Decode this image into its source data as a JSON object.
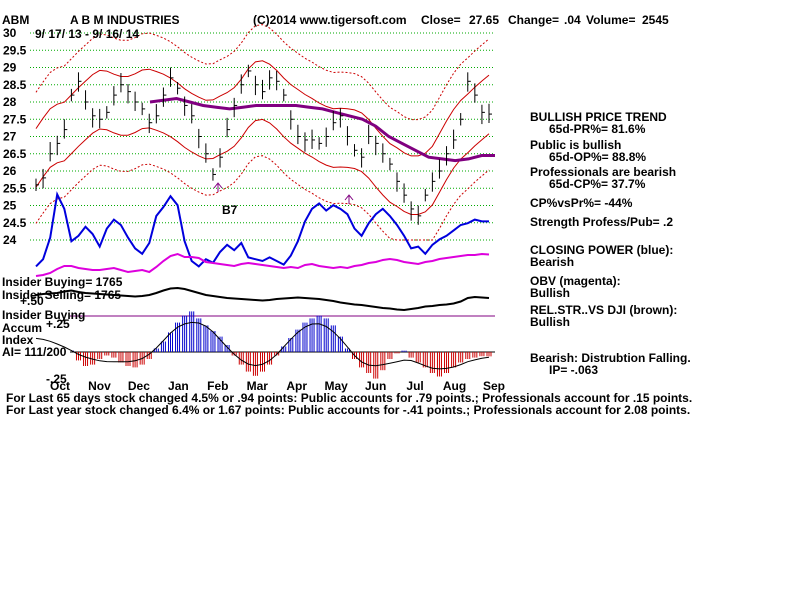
{
  "header": {
    "ticker": "ABM",
    "company": "A B M INDUSTRIES",
    "copyright": "(C)2014 www.tigersoft.com",
    "close_label": "Close=",
    "close_value": "27.65",
    "change_label": "Change=",
    "change_value": ".04",
    "volume_label": "Volume=",
    "volume_value": "2545",
    "date_range": "9/ 17/ 13 - 9/ 16/ 14"
  },
  "panel": {
    "trend_title": "BULLISH PRICE TREND",
    "pr_line": "65d-PR%= 81.6%",
    "public_title": "Public is bullish",
    "op_line": "65d-OP%= 88.8%",
    "pros_title": "Professionals are bearish",
    "cp_line": "65d-CP%= 37.7%",
    "cpvspr": "CP%vsPr%= -44%",
    "strength": "Strength Profess/Pub= .2",
    "closing_power_title": "CLOSING POWER (blue):",
    "closing_power_value": "Bearish",
    "obv_title": "OBV (magenta):",
    "obv_value": "Bullish",
    "relstr_title": "REL.STR..VS DJI (brown):",
    "relstr_value": "Bullish",
    "ai_title": "Bearish: Distrubtion Falling.",
    "ip_line": "IP= -.063"
  },
  "left_labels": {
    "insider_buying": "Insider Buying= 1765",
    "insider_selling": "Insider Selling= 1765",
    "plus50": "+.50",
    "insider_buying2": "Insider Buying",
    "accum": "Accum",
    "plus25": "+.25",
    "index": "Index",
    "ai": "AI= 111/200",
    "minus25": "-.25"
  },
  "signal_label": "B7",
  "footer": {
    "line1": "For Last 65 days stock changed  4.5% or  .94 points:  Public accounts for  .79 points.;  Professionals account for  .15 points.",
    "line2": "For Last year stock changed  6.4% or  1.67 points:  Public accounts for -.41 points.;  Professionals account for  2.08 points."
  },
  "colors": {
    "closing_power": "#0000dd",
    "obv": "#dd00dd",
    "ma": "#800080",
    "bands": "#cc0000",
    "grid": "#00aa00",
    "accum_pos": "#0000cc",
    "accum_neg": "#cc0000"
  },
  "chart_data": {
    "type": "line",
    "y_ticks": [
      "30",
      "29.5",
      "29",
      "28.5",
      "28",
      "27.5",
      "27",
      "26.5",
      "26",
      "25.5",
      "25",
      "24.5",
      "24"
    ],
    "ylim": [
      24,
      30
    ],
    "x_ticks": [
      "Oct",
      "Nov",
      "Dec",
      "Jan",
      "Feb",
      "Mar",
      "Apr",
      "May",
      "Jun",
      "Jul",
      "Aug",
      "Sep"
    ],
    "price_close": [
      25.6,
      25.8,
      26.5,
      26.8,
      27.2,
      28.2,
      28.6,
      28.0,
      27.6,
      27.5,
      27.7,
      28.2,
      28.5,
      28.3,
      28.0,
      27.8,
      27.4,
      27.6,
      28.2,
      28.7,
      28.4,
      27.9,
      27.6,
      27.0,
      26.5,
      25.9,
      26.4,
      27.2,
      27.9,
      28.5,
      28.9,
      28.5,
      28.3,
      28.7,
      28.6,
      28.2,
      27.5,
      27.0,
      26.9,
      26.9,
      26.8,
      27.0,
      27.4,
      27.6,
      27.0,
      26.6,
      26.4,
      27.0,
      26.8,
      26.5,
      26.2,
      25.7,
      25.3,
      24.9,
      24.7,
      25.3,
      25.7,
      26.0,
      26.5,
      26.9,
      27.5,
      28.6,
      28.2,
      27.7,
      27.65
    ],
    "ma_values": [
      28.0,
      28.05,
      28.1,
      28.0,
      27.9,
      27.85,
      27.8,
      27.85,
      27.9,
      27.9,
      27.9,
      27.9,
      27.85,
      27.8,
      27.7,
      27.6,
      27.5,
      27.3,
      27.0,
      26.8,
      26.6,
      26.4,
      26.35,
      26.3,
      26.35,
      26.45,
      26.45
    ],
    "closing_power_series": [
      0.2,
      0.6,
      1.8,
      4.2,
      3.4,
      1.6,
      1.9,
      2.4,
      2.0,
      1.3,
      2.3,
      2.8,
      2.5,
      1.8,
      1.2,
      0.9,
      1.5,
      3.0,
      3.5,
      4.1,
      3.6,
      1.6,
      0.5,
      0.2,
      0.6,
      0.4,
      1.0,
      1.4,
      1.1,
      1.5,
      0.7,
      0.6,
      0.5,
      0.7,
      0.5,
      0.3,
      0.8,
      1.6,
      2.7,
      3.4,
      3.7,
      3.3,
      3.6,
      3.4,
      3.1,
      2.3,
      1.9,
      2.6,
      3.1,
      3.4,
      3.0,
      2.5,
      1.9,
      1.2,
      1.3,
      0.9,
      1.4,
      1.7,
      1.9,
      2.2,
      2.5,
      2.6,
      2.8,
      2.7,
      2.7
    ],
    "obv_series": [
      0.2,
      0.3,
      0.5,
      0.9,
      1.2,
      1.2,
      1.0,
      0.9,
      0.8,
      0.8,
      0.9,
      1.0,
      0.8,
      0.6,
      0.7,
      0.8,
      0.6,
      1.1,
      1.7,
      2.2,
      2.4,
      2.1,
      2.1,
      2.0,
      1.6,
      1.5,
      1.4,
      1.3,
      1.2,
      1.4,
      1.5,
      1.4,
      1.3,
      1.2,
      1.1,
      1.0,
      1.1,
      1.0,
      1.3,
      1.4,
      1.2,
      1.1,
      1.0,
      1.1,
      1.0,
      1.2,
      1.3,
      1.5,
      1.6,
      1.8,
      1.9,
      1.8,
      1.6,
      1.5,
      1.4,
      1.6,
      1.7,
      1.9,
      2.0,
      2.1,
      2.2,
      2.3,
      2.3,
      2.4,
      2.35
    ],
    "relstr_series": [
      1.0,
      1.2,
      1.3,
      1.4,
      1.7,
      1.9,
      1.6,
      1.4,
      1.3,
      1.2,
      1.1,
      1.0,
      0.9,
      0.8,
      0.7,
      0.8,
      1.0,
      1.4,
      1.9,
      2.3,
      2.4,
      2.2,
      1.8,
      1.4,
      1.0,
      0.8,
      0.6,
      0.4,
      0.3,
      0.2,
      0.1,
      0.0,
      -0.1,
      0.0,
      0.2,
      0.3,
      0.4,
      0.5,
      0.4,
      0.3,
      0.2,
      0.0,
      -0.2,
      -0.5,
      -0.7,
      -0.9,
      -1.0,
      -1.2,
      -1.4,
      -1.6,
      -1.7,
      -1.9,
      -2.0,
      -1.8,
      -1.6,
      -1.3,
      -1.2,
      -1.0,
      -0.9,
      -0.7,
      -0.3,
      0.4,
      0.6,
      0.5,
      0.4
    ],
    "accum_series": [
      0.1,
      0.18,
      0.28,
      0.22,
      0.12,
      0.02,
      -0.12,
      -0.2,
      -0.18,
      -0.1,
      -0.05,
      -0.08,
      -0.15,
      -0.2,
      -0.22,
      -0.18,
      -0.1,
      0.05,
      0.15,
      0.28,
      0.42,
      0.52,
      0.58,
      0.48,
      0.38,
      0.3,
      0.22,
      0.1,
      -0.05,
      -0.18,
      -0.28,
      -0.34,
      -0.28,
      -0.18,
      -0.05,
      0.08,
      0.2,
      0.32,
      0.42,
      0.48,
      0.52,
      0.48,
      0.38,
      0.22,
      0.05,
      -0.1,
      -0.22,
      -0.3,
      -0.38,
      -0.26,
      -0.1,
      -0.02,
      0.02,
      -0.08,
      -0.15,
      -0.22,
      -0.3,
      -0.35,
      -0.3,
      -0.22,
      -0.15,
      -0.1,
      -0.08,
      -0.06,
      -0.063
    ]
  }
}
